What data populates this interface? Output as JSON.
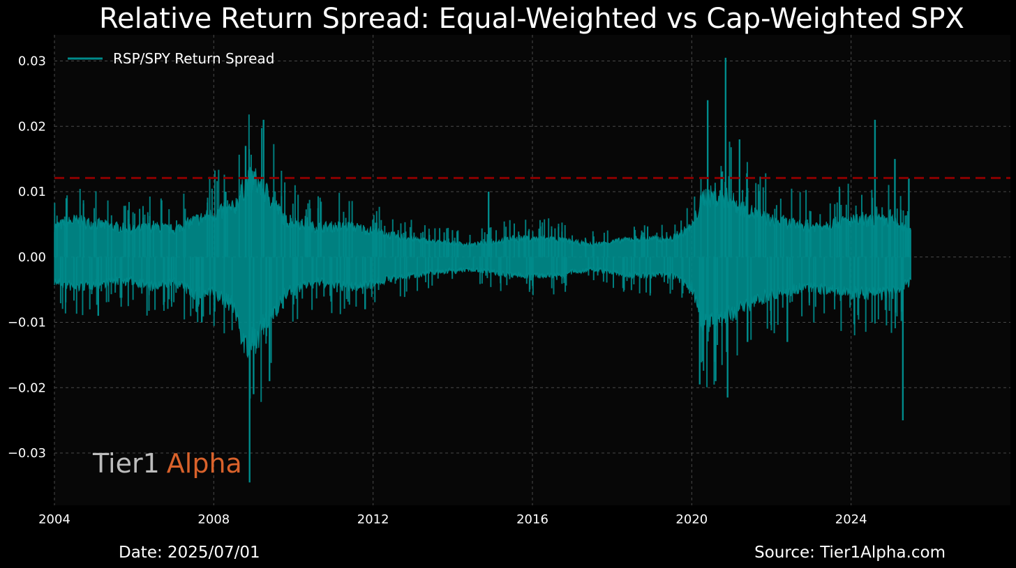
{
  "colors": {
    "background": "#000000",
    "plot_background": "#070707",
    "grid": "#4a4a4a",
    "series": "#008b8b",
    "threshold": "#8b0000",
    "text": "#ffffff",
    "logo_primary": "#bdbdbd",
    "logo_accent": "#d9622b"
  },
  "branding": {
    "logo_part1": "Tier1",
    "logo_part2": "Alpha"
  },
  "footer": {
    "date": "Date: 2025/07/01",
    "source": "Source: Tier1Alpha.com"
  },
  "chart_data": {
    "type": "line",
    "title": "Relative Return Spread: Equal-Weighted vs Cap-Weighted SPX",
    "xlabel": "",
    "ylabel": "",
    "xlim": [
      2004.0,
      2028.0
    ],
    "ylim": [
      -0.038,
      0.034
    ],
    "x_ticks": [
      2004,
      2008,
      2012,
      2016,
      2020,
      2024
    ],
    "x_tick_labels": [
      "2004",
      "2008",
      "2012",
      "2016",
      "2020",
      "2024"
    ],
    "y_ticks": [
      0.03,
      0.02,
      0.01,
      0.0,
      -0.01,
      -0.02,
      -0.03
    ],
    "y_tick_labels": [
      "0.03",
      "0.02",
      "0.01",
      "0.00",
      "−0.01",
      "−0.02",
      "−0.03"
    ],
    "grid": true,
    "legend_position": "top-left",
    "threshold_line": {
      "y": 0.0121,
      "style": "dashed"
    },
    "series": [
      {
        "name": "RSP/SPY Return Spread",
        "envelope_note": "daily values; approximate range per period",
        "envelope": [
          {
            "x": 2004.0,
            "low": -0.004,
            "high": 0.005
          },
          {
            "x": 2004.5,
            "low": -0.005,
            "high": 0.006
          },
          {
            "x": 2005.0,
            "low": -0.0045,
            "high": 0.0055
          },
          {
            "x": 2005.5,
            "low": -0.004,
            "high": 0.005
          },
          {
            "x": 2006.0,
            "low": -0.004,
            "high": 0.0045
          },
          {
            "x": 2006.5,
            "low": -0.005,
            "high": 0.005
          },
          {
            "x": 2007.0,
            "low": -0.004,
            "high": 0.0045
          },
          {
            "x": 2007.5,
            "low": -0.006,
            "high": 0.006
          },
          {
            "x": 2008.0,
            "low": -0.006,
            "high": 0.007
          },
          {
            "x": 2008.5,
            "low": -0.008,
            "high": 0.008
          },
          {
            "x": 2008.8,
            "low": -0.015,
            "high": 0.012
          },
          {
            "x": 2009.0,
            "low": -0.014,
            "high": 0.013
          },
          {
            "x": 2009.4,
            "low": -0.01,
            "high": 0.01
          },
          {
            "x": 2009.8,
            "low": -0.006,
            "high": 0.006
          },
          {
            "x": 2010.5,
            "low": -0.004,
            "high": 0.005
          },
          {
            "x": 2011.5,
            "low": -0.005,
            "high": 0.005
          },
          {
            "x": 2012.5,
            "low": -0.0035,
            "high": 0.0035
          },
          {
            "x": 2013.5,
            "low": -0.0025,
            "high": 0.0025
          },
          {
            "x": 2014.5,
            "low": -0.002,
            "high": 0.002
          },
          {
            "x": 2015.5,
            "low": -0.003,
            "high": 0.003
          },
          {
            "x": 2016.5,
            "low": -0.003,
            "high": 0.003
          },
          {
            "x": 2017.5,
            "low": -0.002,
            "high": 0.002
          },
          {
            "x": 2018.5,
            "low": -0.003,
            "high": 0.003
          },
          {
            "x": 2019.5,
            "low": -0.003,
            "high": 0.003
          },
          {
            "x": 2020.0,
            "low": -0.005,
            "high": 0.005
          },
          {
            "x": 2020.3,
            "low": -0.011,
            "high": 0.01
          },
          {
            "x": 2020.8,
            "low": -0.01,
            "high": 0.01
          },
          {
            "x": 2021.3,
            "low": -0.008,
            "high": 0.008
          },
          {
            "x": 2022.0,
            "low": -0.006,
            "high": 0.006
          },
          {
            "x": 2023.0,
            "low": -0.005,
            "high": 0.005
          },
          {
            "x": 2024.0,
            "low": -0.006,
            "high": 0.006
          },
          {
            "x": 2025.0,
            "low": -0.006,
            "high": 0.006
          },
          {
            "x": 2025.5,
            "low": -0.004,
            "high": 0.004
          }
        ],
        "notable_points": [
          {
            "x": 2004.3,
            "y": 0.009
          },
          {
            "x": 2005.1,
            "y": -0.009
          },
          {
            "x": 2007.7,
            "y": -0.01
          },
          {
            "x": 2008.3,
            "y": 0.01
          },
          {
            "x": 2008.8,
            "y": 0.017
          },
          {
            "x": 2008.9,
            "y": -0.0345
          },
          {
            "x": 2009.0,
            "y": -0.021
          },
          {
            "x": 2009.25,
            "y": 0.021
          },
          {
            "x": 2009.4,
            "y": -0.019
          },
          {
            "x": 2011.8,
            "y": -0.008
          },
          {
            "x": 2014.9,
            "y": 0.01
          },
          {
            "x": 2020.2,
            "y": -0.0195
          },
          {
            "x": 2020.4,
            "y": 0.024
          },
          {
            "x": 2020.6,
            "y": -0.019
          },
          {
            "x": 2020.75,
            "y": 0.013
          },
          {
            "x": 2020.85,
            "y": 0.0305
          },
          {
            "x": 2020.9,
            "y": -0.0215
          },
          {
            "x": 2021.2,
            "y": 0.018
          },
          {
            "x": 2021.4,
            "y": -0.013
          },
          {
            "x": 2022.4,
            "y": -0.013
          },
          {
            "x": 2024.6,
            "y": 0.021
          },
          {
            "x": 2025.1,
            "y": 0.015
          },
          {
            "x": 2025.3,
            "y": -0.025
          },
          {
            "x": 2025.45,
            "y": 0.012
          }
        ]
      }
    ]
  }
}
